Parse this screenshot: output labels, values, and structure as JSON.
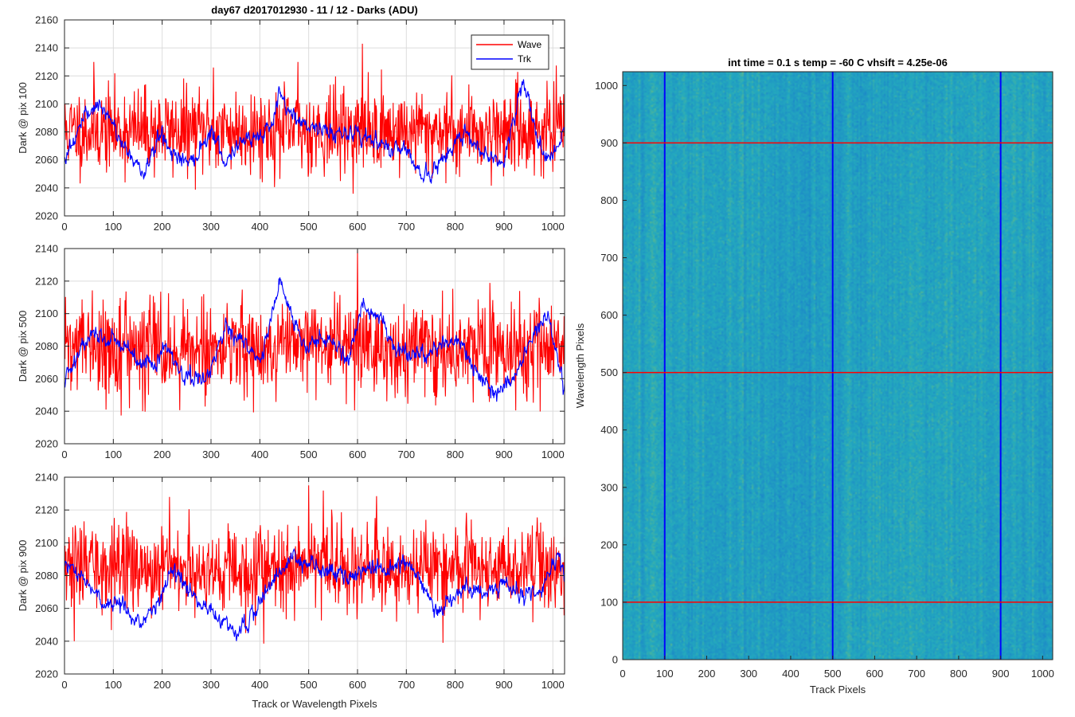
{
  "chart_data": [
    {
      "type": "line",
      "title": "day67 d2017012930 - 11 / 12 - Darks (ADU)",
      "xlabel": "",
      "ylabel": "Dark @ pix 100",
      "xlim": [
        0,
        1024
      ],
      "ylim": [
        2020,
        2160
      ],
      "xticks": [
        0,
        100,
        200,
        300,
        400,
        500,
        600,
        700,
        800,
        900,
        1000
      ],
      "yticks": [
        2020,
        2040,
        2060,
        2080,
        2100,
        2120,
        2140,
        2160
      ],
      "grid": true,
      "legend": {
        "placement": "top-right",
        "entries": [
          "Wave",
          "Trk"
        ]
      },
      "series": [
        {
          "name": "Wave",
          "color": "#ff0000",
          "mean": 2081,
          "noise_sd": 15,
          "seed": 11,
          "peaks": [
            {
              "x": 60,
              "y": 2130
            },
            {
              "x": 305,
              "y": 2126
            },
            {
              "x": 478,
              "y": 2130
            },
            {
              "x": 610,
              "y": 2143
            }
          ]
        },
        {
          "name": "Trk",
          "color": "#0000ff",
          "mean": 2072,
          "noise_sd": 6,
          "trend": [
            [
              0,
              2062
            ],
            [
              30,
              2082
            ],
            [
              60,
              2100
            ],
            [
              90,
              2090
            ],
            [
              130,
              2065
            ],
            [
              160,
              2050
            ],
            [
              200,
              2080
            ],
            [
              220,
              2065
            ],
            [
              260,
              2058
            ],
            [
              300,
              2082
            ],
            [
              330,
              2058
            ],
            [
              360,
              2075
            ],
            [
              420,
              2080
            ],
            [
              440,
              2105
            ],
            [
              470,
              2090
            ],
            [
              500,
              2085
            ],
            [
              540,
              2080
            ],
            [
              580,
              2080
            ],
            [
              620,
              2076
            ],
            [
              660,
              2068
            ],
            [
              700,
              2070
            ],
            [
              730,
              2048
            ],
            [
              760,
              2052
            ],
            [
              790,
              2068
            ],
            [
              820,
              2080
            ],
            [
              860,
              2065
            ],
            [
              900,
              2058
            ],
            [
              940,
              2118
            ],
            [
              970,
              2070
            ],
            [
              1000,
              2060
            ],
            [
              1024,
              2082
            ]
          ]
        }
      ]
    },
    {
      "type": "line",
      "title": "",
      "xlabel": "",
      "ylabel": "Dark @ pix 500",
      "xlim": [
        0,
        1024
      ],
      "ylim": [
        2020,
        2140
      ],
      "xticks": [
        0,
        100,
        200,
        300,
        400,
        500,
        600,
        700,
        800,
        900,
        1000
      ],
      "yticks": [
        2020,
        2040,
        2060,
        2080,
        2100,
        2120,
        2140
      ],
      "grid": true,
      "series": [
        {
          "name": "Wave",
          "color": "#ff0000",
          "mean": 2079,
          "noise_sd": 14,
          "seed": 22,
          "peaks": [
            {
              "x": 600,
              "y": 2139
            },
            {
              "x": 160,
              "y": 2040
            }
          ]
        },
        {
          "name": "Trk",
          "color": "#0000ff",
          "mean": 2078,
          "noise_sd": 5,
          "trend": [
            [
              0,
              2060
            ],
            [
              30,
              2075
            ],
            [
              60,
              2090
            ],
            [
              110,
              2082
            ],
            [
              150,
              2070
            ],
            [
              180,
              2068
            ],
            [
              210,
              2080
            ],
            [
              240,
              2063
            ],
            [
              290,
              2060
            ],
            [
              330,
              2090
            ],
            [
              360,
              2085
            ],
            [
              400,
              2070
            ],
            [
              440,
              2120
            ],
            [
              470,
              2095
            ],
            [
              500,
              2078
            ],
            [
              540,
              2085
            ],
            [
              580,
              2070
            ],
            [
              610,
              2105
            ],
            [
              640,
              2100
            ],
            [
              680,
              2080
            ],
            [
              720,
              2075
            ],
            [
              760,
              2080
            ],
            [
              800,
              2085
            ],
            [
              840,
              2065
            ],
            [
              880,
              2050
            ],
            [
              920,
              2060
            ],
            [
              950,
              2080
            ],
            [
              990,
              2100
            ],
            [
              1024,
              2055
            ]
          ]
        }
      ]
    },
    {
      "type": "line",
      "title": "",
      "xlabel": "Track or Wavelength Pixels",
      "ylabel": "Dark @ pix 900",
      "xlim": [
        0,
        1024
      ],
      "ylim": [
        2020,
        2140
      ],
      "xticks": [
        0,
        100,
        200,
        300,
        400,
        500,
        600,
        700,
        800,
        900,
        1000
      ],
      "yticks": [
        2020,
        2040,
        2060,
        2080,
        2100,
        2120,
        2140
      ],
      "grid": true,
      "series": [
        {
          "name": "Wave",
          "color": "#ff0000",
          "mean": 2085,
          "noise_sd": 13,
          "seed": 33,
          "peaks": [
            {
              "x": 500,
              "y": 2135
            },
            {
              "x": 215,
              "y": 2128
            },
            {
              "x": 20,
              "y": 2040
            },
            {
              "x": 775,
              "y": 2039
            }
          ]
        },
        {
          "name": "Trk",
          "color": "#0000ff",
          "mean": 2070,
          "noise_sd": 5,
          "trend": [
            [
              0,
              2088
            ],
            [
              40,
              2078
            ],
            [
              80,
              2062
            ],
            [
              120,
              2065
            ],
            [
              150,
              2050
            ],
            [
              190,
              2062
            ],
            [
              220,
              2082
            ],
            [
              250,
              2075
            ],
            [
              280,
              2063
            ],
            [
              310,
              2056
            ],
            [
              350,
              2046
            ],
            [
              380,
              2052
            ],
            [
              430,
              2080
            ],
            [
              470,
              2092
            ],
            [
              500,
              2085
            ],
            [
              540,
              2082
            ],
            [
              580,
              2080
            ],
            [
              620,
              2085
            ],
            [
              660,
              2082
            ],
            [
              700,
              2090
            ],
            [
              740,
              2070
            ],
            [
              760,
              2058
            ],
            [
              790,
              2065
            ],
            [
              820,
              2072
            ],
            [
              860,
              2068
            ],
            [
              900,
              2075
            ],
            [
              940,
              2070
            ],
            [
              980,
              2072
            ],
            [
              1010,
              2095
            ],
            [
              1024,
              2075
            ]
          ]
        }
      ]
    },
    {
      "type": "heatmap",
      "title": "int time = 0.1 s   temp = -60 C   vhsift = 4.25e-06",
      "xlabel": "Track Pixels",
      "ylabel": "Wavelength Pixels",
      "xlim": [
        0,
        1024
      ],
      "ylim": [
        0,
        1024
      ],
      "xticks": [
        0,
        100,
        200,
        300,
        400,
        500,
        600,
        700,
        800,
        900,
        1000
      ],
      "yticks": [
        0,
        100,
        200,
        300,
        400,
        500,
        600,
        700,
        800,
        900,
        1000
      ],
      "colormap": "parula",
      "base_color": "#1f9fcf",
      "highlight_color": "#7ecf6a",
      "overlay_rows": [
        100,
        500,
        900
      ],
      "overlay_cols": [
        100,
        500,
        900
      ],
      "row_line_color": "#ff0000",
      "col_line_color": "#0000ff"
    }
  ]
}
